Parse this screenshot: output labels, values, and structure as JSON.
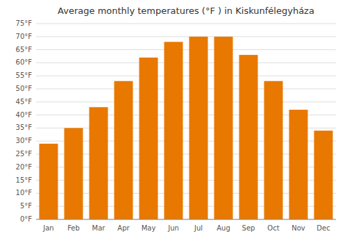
{
  "chart_data": {
    "type": "bar",
    "title": "Average monthly temperatures (°F ) in Kiskunfélegyháza",
    "categories": [
      "Jan",
      "Feb",
      "Mar",
      "Apr",
      "May",
      "Jun",
      "Jul",
      "Aug",
      "Sep",
      "Oct",
      "Nov",
      "Dec"
    ],
    "values": [
      29,
      35,
      43,
      53,
      62,
      68,
      70,
      70,
      63,
      53,
      42,
      34
    ],
    "color": "#E87800",
    "ylim": [
      0,
      75
    ],
    "yticks": [
      {
        "value": 0,
        "label": "0°F"
      },
      {
        "value": 5,
        "label": "5°F"
      },
      {
        "value": 10,
        "label": "10°F"
      },
      {
        "value": 15,
        "label": "15°F"
      },
      {
        "value": 20,
        "label": "20°F"
      },
      {
        "value": 25,
        "label": "25°F"
      },
      {
        "value": 30,
        "label": "30°F"
      },
      {
        "value": 35,
        "label": "35°F"
      },
      {
        "value": 40,
        "label": "40°F"
      },
      {
        "value": 45,
        "label": "45°F"
      },
      {
        "value": 50,
        "label": "50°F"
      },
      {
        "value": 55,
        "label": "55°F"
      },
      {
        "value": 60,
        "label": "60°F"
      },
      {
        "value": 65,
        "label": "65°F"
      },
      {
        "value": 70,
        "label": "70°F"
      },
      {
        "value": 75,
        "label": "75°F"
      }
    ],
    "grid": true
  }
}
